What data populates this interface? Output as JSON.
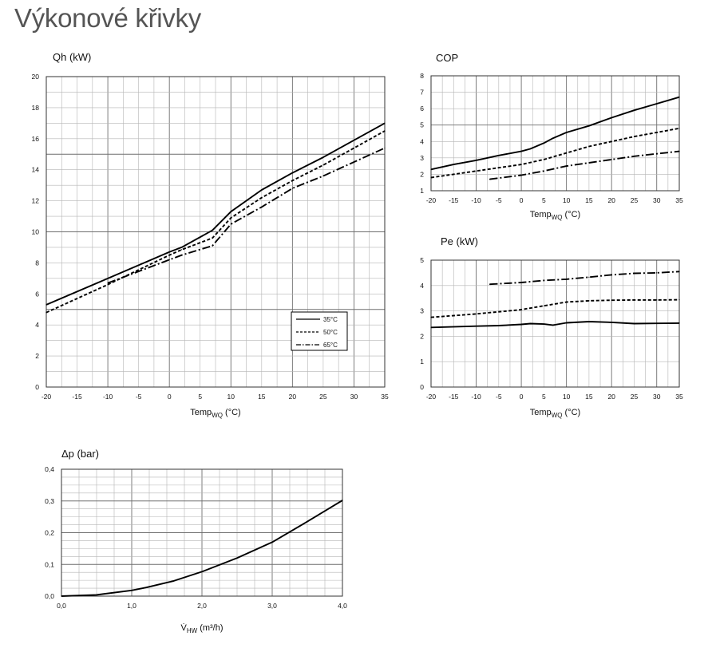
{
  "page_title": "Výkonové křivky",
  "chart_data": [
    {
      "id": "qh",
      "type": "line",
      "title": "Qh (kW)",
      "xlabel_main": "Temp",
      "xlabel_sub": "WQ",
      "xlabel_unit": " (°C)",
      "xlim": [
        -20,
        35
      ],
      "ylim": [
        0,
        20
      ],
      "grid": true,
      "legend_position": "bottom-right",
      "xticks": [
        "-20",
        "-15",
        "-10",
        "-5",
        "0",
        "5",
        "10",
        "15",
        "20",
        "25",
        "30",
        "35"
      ],
      "yticks": [
        "0",
        "2",
        "4",
        "6",
        "8",
        "10",
        "12",
        "14",
        "16",
        "18",
        "20"
      ],
      "series": [
        {
          "name": "35°C",
          "style": "solid",
          "points": [
            [
              -20,
              5.3
            ],
            [
              -10,
              7.0
            ],
            [
              0,
              8.7
            ],
            [
              2,
              9.0
            ],
            [
              7,
              10.1
            ],
            [
              10,
              11.3
            ],
            [
              15,
              12.7
            ],
            [
              20,
              13.8
            ],
            [
              25,
              14.8
            ],
            [
              30,
              15.9
            ],
            [
              35,
              17.0
            ]
          ]
        },
        {
          "name": "50°C",
          "style": "dashed",
          "points": [
            [
              -20,
              4.8
            ],
            [
              -10,
              6.6
            ],
            [
              0,
              8.5
            ],
            [
              2,
              8.85
            ],
            [
              7,
              9.6
            ],
            [
              10,
              10.9
            ],
            [
              15,
              12.2
            ],
            [
              20,
              13.3
            ],
            [
              25,
              14.3
            ],
            [
              30,
              15.4
            ],
            [
              35,
              16.5
            ]
          ]
        },
        {
          "name": "65°C",
          "style": "dashdot",
          "points": [
            [
              -10,
              6.7
            ],
            [
              0,
              8.2
            ],
            [
              2,
              8.5
            ],
            [
              7,
              9.1
            ],
            [
              10,
              10.5
            ],
            [
              15,
              11.6
            ],
            [
              20,
              12.8
            ],
            [
              25,
              13.6
            ],
            [
              30,
              14.5
            ],
            [
              35,
              15.4
            ]
          ]
        }
      ]
    },
    {
      "id": "cop",
      "type": "line",
      "title": "COP",
      "xlabel_main": "Temp",
      "xlabel_sub": "WQ",
      "xlabel_unit": " (°C)",
      "xlim": [
        -20,
        35
      ],
      "ylim": [
        1,
        8
      ],
      "grid": true,
      "xticks": [
        "-20",
        "-15",
        "-10",
        "-5",
        "0",
        "5",
        "10",
        "15",
        "20",
        "25",
        "30",
        "35"
      ],
      "yticks": [
        "1",
        "2",
        "3",
        "4",
        "5",
        "6",
        "7",
        "8"
      ],
      "series": [
        {
          "style": "solid",
          "points": [
            [
              -20,
              2.3
            ],
            [
              -15,
              2.6
            ],
            [
              -10,
              2.85
            ],
            [
              -5,
              3.15
            ],
            [
              0,
              3.4
            ],
            [
              2,
              3.55
            ],
            [
              5,
              3.9
            ],
            [
              7,
              4.2
            ],
            [
              10,
              4.55
            ],
            [
              15,
              4.95
            ],
            [
              20,
              5.45
            ],
            [
              25,
              5.9
            ],
            [
              30,
              6.3
            ],
            [
              35,
              6.7
            ]
          ]
        },
        {
          "style": "dashed",
          "points": [
            [
              -20,
              1.8
            ],
            [
              -10,
              2.2
            ],
            [
              0,
              2.6
            ],
            [
              5,
              2.9
            ],
            [
              10,
              3.3
            ],
            [
              15,
              3.7
            ],
            [
              20,
              4.0
            ],
            [
              25,
              4.3
            ],
            [
              30,
              4.55
            ],
            [
              35,
              4.8
            ]
          ]
        },
        {
          "style": "dashdot",
          "points": [
            [
              -7,
              1.7
            ],
            [
              0,
              1.95
            ],
            [
              5,
              2.2
            ],
            [
              10,
              2.5
            ],
            [
              15,
              2.7
            ],
            [
              20,
              2.9
            ],
            [
              25,
              3.1
            ],
            [
              30,
              3.25
            ],
            [
              35,
              3.4
            ]
          ]
        }
      ]
    },
    {
      "id": "pe",
      "type": "line",
      "title": "Pe (kW)",
      "xlabel_main": "Temp",
      "xlabel_sub": "WQ",
      "xlabel_unit": " (°C)",
      "xlim": [
        -20,
        35
      ],
      "ylim": [
        0,
        5
      ],
      "grid": true,
      "xticks": [
        "-20",
        "-15",
        "-10",
        "-5",
        "0",
        "5",
        "10",
        "15",
        "20",
        "25",
        "30",
        "35"
      ],
      "yticks": [
        "0",
        "1",
        "2",
        "3",
        "4",
        "5"
      ],
      "series": [
        {
          "style": "solid",
          "points": [
            [
              -20,
              2.35
            ],
            [
              -10,
              2.4
            ],
            [
              -5,
              2.42
            ],
            [
              0,
              2.47
            ],
            [
              2,
              2.5
            ],
            [
              5,
              2.48
            ],
            [
              7,
              2.44
            ],
            [
              10,
              2.53
            ],
            [
              15,
              2.58
            ],
            [
              20,
              2.55
            ],
            [
              25,
              2.5
            ],
            [
              30,
              2.51
            ],
            [
              35,
              2.52
            ]
          ]
        },
        {
          "style": "dashed",
          "points": [
            [
              -20,
              2.75
            ],
            [
              -10,
              2.88
            ],
            [
              0,
              3.05
            ],
            [
              5,
              3.2
            ],
            [
              10,
              3.35
            ],
            [
              15,
              3.4
            ],
            [
              20,
              3.42
            ],
            [
              25,
              3.43
            ],
            [
              30,
              3.43
            ],
            [
              35,
              3.44
            ]
          ]
        },
        {
          "style": "dashdot",
          "points": [
            [
              -7,
              4.05
            ],
            [
              0,
              4.12
            ],
            [
              5,
              4.2
            ],
            [
              10,
              4.25
            ],
            [
              15,
              4.33
            ],
            [
              20,
              4.42
            ],
            [
              25,
              4.48
            ],
            [
              30,
              4.5
            ],
            [
              35,
              4.55
            ]
          ]
        }
      ]
    },
    {
      "id": "dp",
      "type": "line",
      "title": "Δp (bar)",
      "xlabel_main": "V̇",
      "xlabel_sub": "HW",
      "xlabel_unit": " (m³/h)",
      "xlim": [
        0,
        4
      ],
      "ylim": [
        0,
        0.4
      ],
      "grid": true,
      "xticks": [
        "0,0",
        "1,0",
        "2,0",
        "3,0",
        "4,0"
      ],
      "yticks": [
        "0,0",
        "0,1",
        "0,2",
        "0,3",
        "0,4"
      ],
      "series": [
        {
          "style": "solid",
          "points": [
            [
              0,
              0
            ],
            [
              0.5,
              0.004
            ],
            [
              1.0,
              0.018
            ],
            [
              1.2,
              0.027
            ],
            [
              1.6,
              0.048
            ],
            [
              2.0,
              0.077
            ],
            [
              2.5,
              0.12
            ],
            [
              3.0,
              0.17
            ],
            [
              3.5,
              0.235
            ],
            [
              4.0,
              0.302
            ]
          ]
        }
      ]
    }
  ]
}
